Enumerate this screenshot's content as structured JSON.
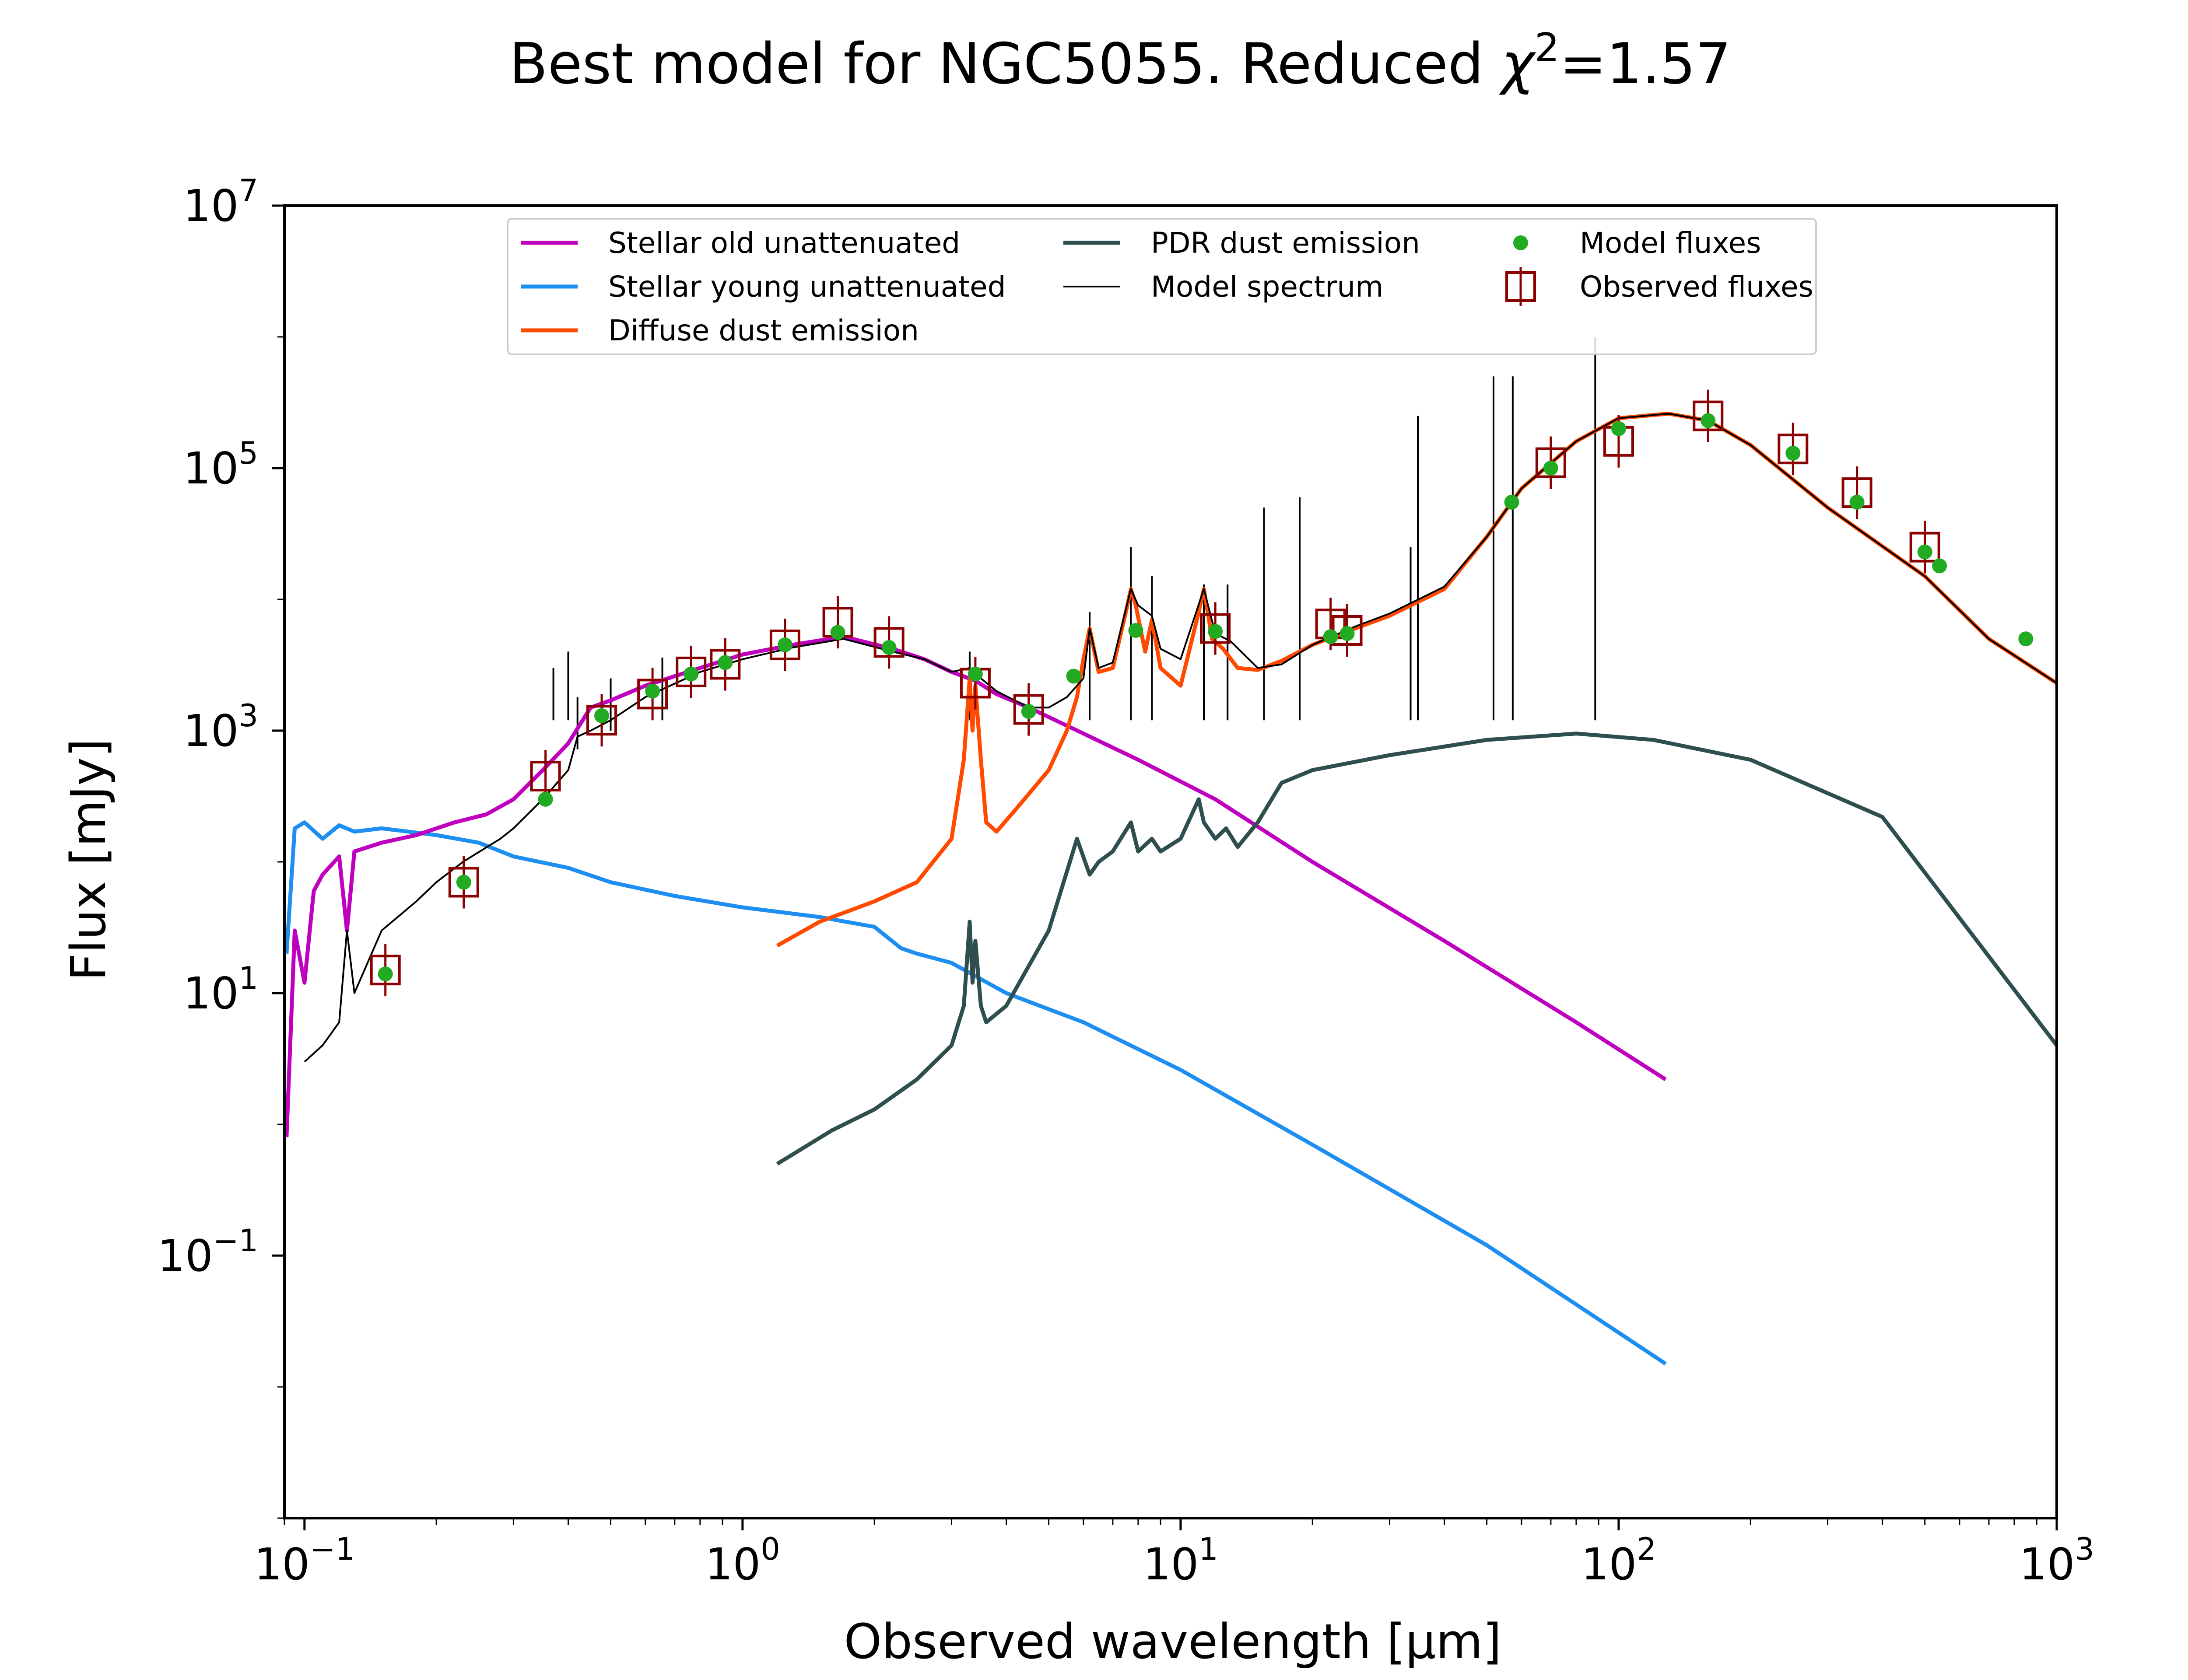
{
  "chart_data": {
    "type": "line",
    "title_prefix": "Best model for NGC5055. Reduced ",
    "title_chi": "χ",
    "title_sup": "2",
    "title_suffix": "=1.57",
    "xlabel": "Observed wavelength [μm]",
    "ylabel": "Flux [mJy]",
    "xscale": "log",
    "yscale": "log",
    "xlim": [
      0.09,
      1000
    ],
    "ylim": [
      0.001,
      10000000
    ],
    "x_ticks": [
      {
        "value": 0.1,
        "base": "10",
        "exp": "−1"
      },
      {
        "value": 1,
        "base": "10",
        "exp": "0"
      },
      {
        "value": 10,
        "base": "10",
        "exp": "1"
      },
      {
        "value": 100,
        "base": "10",
        "exp": "2"
      },
      {
        "value": 1000,
        "base": "10",
        "exp": "3"
      }
    ],
    "y_ticks": [
      {
        "value": 0.1,
        "base": "10",
        "exp": "−1"
      },
      {
        "value": 10,
        "base": "10",
        "exp": "1"
      },
      {
        "value": 1000,
        "base": "10",
        "exp": "3"
      },
      {
        "value": 100000,
        "base": "10",
        "exp": "5"
      },
      {
        "value": 10000000,
        "base": "10",
        "exp": "7"
      }
    ],
    "legend_position": "upper center",
    "series": [
      {
        "name": "Stellar old unattenuated",
        "color": "#bf00bf",
        "kind": "line",
        "x": [
          0.091,
          0.095,
          0.1,
          0.105,
          0.11,
          0.12,
          0.125,
          0.13,
          0.15,
          0.18,
          0.22,
          0.26,
          0.3,
          0.35,
          0.4,
          0.45,
          0.5,
          0.6,
          0.8,
          1.0,
          1.3,
          1.7,
          2.2,
          2.6,
          3.0,
          3.4,
          3.8,
          4.5,
          6.0,
          8.0,
          12,
          20,
          40,
          80,
          128
        ],
        "y": [
          0.8,
          30,
          12,
          60,
          80,
          110,
          30,
          120,
          140,
          160,
          200,
          230,
          300,
          500,
          800,
          1500,
          1700,
          2200,
          3000,
          3800,
          4500,
          5200,
          4200,
          3500,
          2800,
          2400,
          1900,
          1500,
          950,
          600,
          300,
          100,
          25,
          6,
          2.2
        ]
      },
      {
        "name": "Stellar young unattenuated",
        "color": "#1e8ff0",
        "kind": "line",
        "x": [
          0.091,
          0.095,
          0.1,
          0.11,
          0.12,
          0.13,
          0.15,
          0.2,
          0.25,
          0.3,
          0.4,
          0.5,
          0.7,
          1.0,
          1.5,
          2.0,
          2.3,
          2.5,
          3.0,
          4.0,
          6.0,
          10,
          20,
          50,
          128
        ],
        "y": [
          20,
          180,
          200,
          150,
          190,
          170,
          180,
          160,
          140,
          110,
          90,
          70,
          55,
          45,
          38,
          32,
          22,
          20,
          17,
          10,
          6,
          2.6,
          0.7,
          0.12,
          0.015
        ]
      },
      {
        "name": "Diffuse dust emission",
        "color": "#ff4a00",
        "kind": "line",
        "x": [
          1.2,
          1.5,
          2.0,
          2.5,
          3.0,
          3.2,
          3.3,
          3.35,
          3.4,
          3.5,
          3.6,
          3.8,
          4.2,
          5.0,
          5.5,
          5.8,
          6.0,
          6.2,
          6.5,
          7.0,
          7.5,
          7.7,
          7.9,
          8.3,
          8.6,
          9.0,
          10,
          11.0,
          11.3,
          11.8,
          12.5,
          13.5,
          15,
          17,
          20,
          25,
          30,
          40,
          50,
          60,
          80,
          100,
          130,
          160,
          200,
          300,
          500,
          700,
          1000
        ],
        "y": [
          23,
          35,
          50,
          70,
          150,
          600,
          2500,
          1000,
          2200,
          600,
          200,
          170,
          250,
          500,
          1000,
          1800,
          3500,
          6000,
          2800,
          3000,
          8000,
          12000,
          9000,
          4000,
          7000,
          3000,
          2200,
          8000,
          12000,
          5000,
          4200,
          3000,
          2900,
          3400,
          4500,
          6000,
          7500,
          12000,
          30000,
          70000,
          160000,
          240000,
          260000,
          230000,
          150000,
          50000,
          15000,
          5000,
          2300
        ]
      },
      {
        "name": "PDR dust emission",
        "color": "#2f4f4f",
        "kind": "line",
        "x": [
          1.2,
          1.6,
          2.0,
          2.5,
          3.0,
          3.2,
          3.3,
          3.35,
          3.4,
          3.5,
          3.6,
          4.0,
          5.0,
          5.8,
          6.2,
          6.5,
          7.0,
          7.7,
          8.0,
          8.6,
          9.0,
          10,
          11.0,
          11.3,
          12,
          12.7,
          13.5,
          15,
          17,
          20,
          30,
          50,
          80,
          120,
          200,
          400,
          1000
        ],
        "y": [
          0.5,
          0.9,
          1.3,
          2.2,
          4,
          8,
          35,
          12,
          25,
          8,
          6,
          8,
          30,
          150,
          80,
          100,
          120,
          200,
          120,
          150,
          120,
          150,
          300,
          200,
          150,
          180,
          130,
          200,
          400,
          500,
          650,
          850,
          950,
          850,
          600,
          220,
          4
        ]
      },
      {
        "name": "Model spectrum",
        "color": "#000000",
        "kind": "line",
        "x": [
          0.1,
          0.11,
          0.12,
          0.125,
          0.13,
          0.15,
          0.18,
          0.2,
          0.23,
          0.28,
          0.3,
          0.35,
          0.4,
          0.42,
          0.45,
          0.5,
          0.6,
          0.8,
          1.0,
          1.3,
          1.7,
          2.2,
          2.6,
          3.0,
          3.3,
          3.5,
          3.8,
          4.5,
          5.0,
          5.5,
          6.0,
          6.2,
          6.5,
          7.0,
          7.7,
          8.0,
          8.6,
          9.0,
          10,
          11.3,
          12,
          13,
          15,
          17,
          20,
          25,
          30,
          40,
          50,
          60,
          80,
          100,
          130,
          160,
          200,
          300,
          500,
          700,
          1000
        ],
        "y": [
          3,
          4,
          6,
          30,
          10,
          30,
          50,
          70,
          100,
          150,
          180,
          300,
          500,
          900,
          1000,
          1200,
          1800,
          2800,
          3500,
          4300,
          5000,
          4000,
          3500,
          2800,
          3000,
          2500,
          2000,
          1500,
          1500,
          1800,
          2500,
          6000,
          3000,
          3300,
          12000,
          9000,
          7500,
          4200,
          3500,
          12000,
          5500,
          4800,
          3000,
          3200,
          4500,
          6200,
          7800,
          12500,
          30000,
          70000,
          160000,
          240000,
          260000,
          230000,
          150000,
          50000,
          15000,
          5000,
          2300
        ]
      },
      {
        "name": "Model fluxes",
        "color": "#22aa22",
        "kind": "marker",
        "x": [
          0.153,
          0.231,
          0.355,
          0.477,
          0.623,
          0.763,
          0.913,
          1.25,
          1.65,
          2.16,
          3.4,
          4.5,
          5.7,
          7.9,
          12,
          22,
          24,
          57,
          70,
          100,
          160,
          250,
          350,
          500,
          540,
          850
        ],
        "y": [
          14,
          70,
          300,
          1300,
          2000,
          2700,
          3300,
          4500,
          5600,
          4300,
          2700,
          1400,
          2600,
          5800,
          5700,
          5200,
          5500,
          55000,
          100000,
          200000,
          230000,
          130000,
          55000,
          23000,
          18000,
          5000
        ]
      },
      {
        "name": "Observed fluxes",
        "color": "#8b0000",
        "kind": "marker",
        "x": [
          0.153,
          0.231,
          0.355,
          0.477,
          0.623,
          0.763,
          0.913,
          1.25,
          1.65,
          2.16,
          3.4,
          4.5,
          12,
          22,
          24,
          70,
          100,
          160,
          250,
          350,
          500
        ],
        "y": [
          15,
          70,
          450,
          1200,
          1900,
          2800,
          3200,
          4500,
          6700,
          4700,
          2300,
          1450,
          6000,
          6500,
          5800,
          110000,
          160000,
          250000,
          140000,
          65000,
          25000
        ]
      }
    ],
    "emission_lines": {
      "color": "#000000",
      "x": [
        0.37,
        0.4,
        0.42,
        0.5,
        0.656,
        3.3,
        6.2,
        7.7,
        8.6,
        11.3,
        12.8,
        15.5,
        18.7,
        33.5,
        34.8,
        51.8,
        57.3,
        88.4
      ],
      "y": [
        3000,
        4000,
        1800,
        2500,
        3600,
        4000,
        8000,
        25000,
        15000,
        13000,
        13000,
        50000,
        60000,
        25000,
        250000,
        500000,
        500000,
        1000000
      ]
    },
    "legend": {
      "entries": [
        {
          "label": "Stellar old unattenuated",
          "color": "#bf00bf",
          "kind": "line"
        },
        {
          "label": "Stellar young unattenuated",
          "color": "#1e8ff0",
          "kind": "line"
        },
        {
          "label": "Diffuse dust emission",
          "color": "#ff4a00",
          "kind": "line"
        },
        {
          "label": "PDR dust emission",
          "color": "#2f4f4f",
          "kind": "line"
        },
        {
          "label": "Model spectrum",
          "color": "#000000",
          "kind": "thinline"
        },
        {
          "label": "Model fluxes",
          "color": "#22aa22",
          "kind": "dot"
        },
        {
          "label": "Observed fluxes",
          "color": "#8b0000",
          "kind": "square"
        }
      ]
    }
  }
}
